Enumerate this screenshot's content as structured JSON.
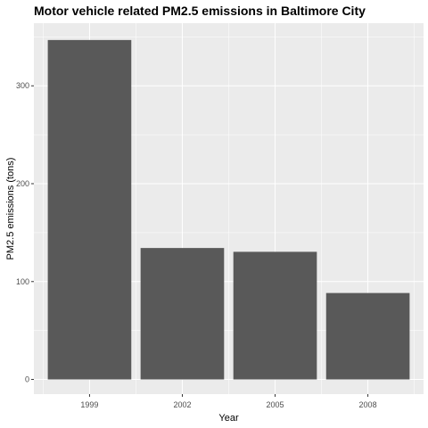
{
  "chart_data": {
    "type": "bar",
    "title": "Motor vehicle related PM2.5 emissions in Baltimore City",
    "xlabel": "Year",
    "ylabel": "PM2.5 emissions (tons)",
    "categories": [
      "1999",
      "2002",
      "2005",
      "2008"
    ],
    "values": [
      346.8,
      134.3,
      130.4,
      88.3
    ],
    "ylim": [
      -15,
      364
    ],
    "yticks": [
      0,
      100,
      200,
      300
    ],
    "grid": true,
    "legend": "none",
    "colors": {
      "bar": "#595959",
      "panel": "#ebebeb",
      "grid_major": "#ffffff",
      "tick_text": "#4d4d4d",
      "tick_mark": "#333333"
    }
  }
}
